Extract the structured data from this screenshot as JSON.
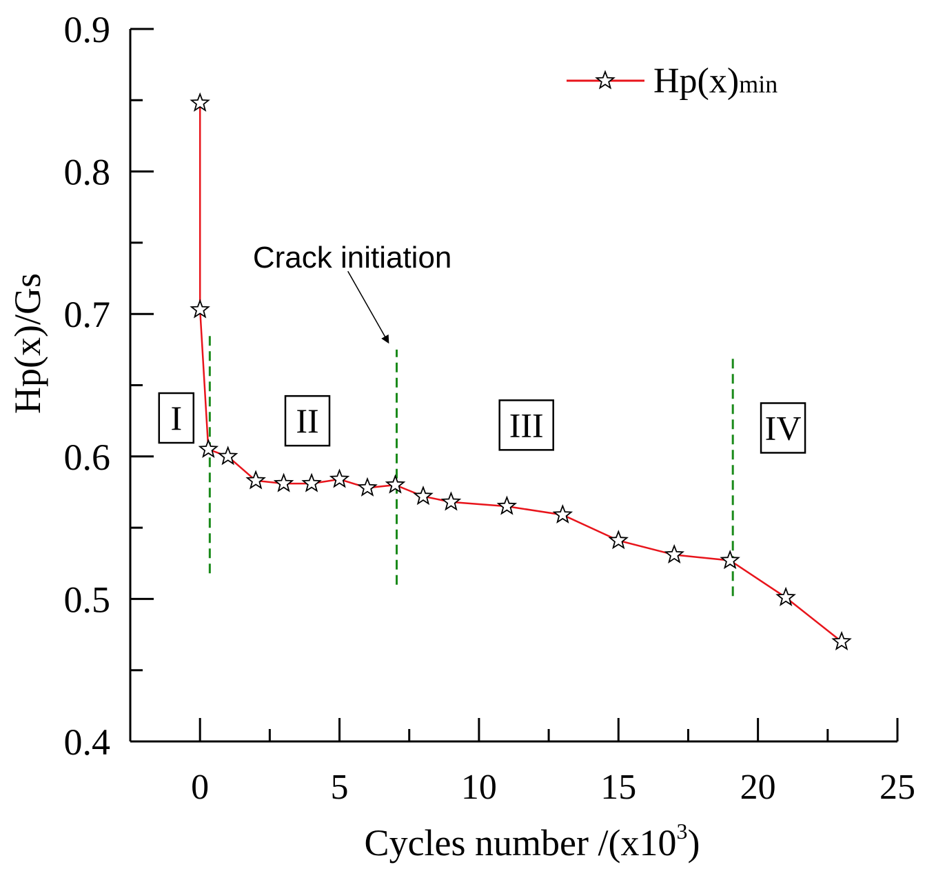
{
  "chart_data": {
    "type": "line",
    "title": "",
    "xlabel": "Cycles number /(x10",
    "xlabel_sup": "3",
    "xlabel_close": ")",
    "ylabel": "Hp(x)/Gs",
    "xlim": [
      -2.5,
      25
    ],
    "ylim": [
      0.4,
      0.9
    ],
    "x_ticks": [
      0,
      5,
      10,
      15,
      20,
      25
    ],
    "y_ticks": [
      0.4,
      0.5,
      0.6,
      0.7,
      0.8,
      0.9
    ],
    "x_tick_labels": [
      "0",
      "5",
      "10",
      "15",
      "20",
      "25"
    ],
    "y_tick_labels": [
      "0.4",
      "0.5",
      "0.6",
      "0.7",
      "0.8",
      "0.9"
    ],
    "grid": false,
    "legend_position": "top-right",
    "series": [
      {
        "name": "Hp(x)",
        "name_sub": "min",
        "color": "#e8141b",
        "marker": "star",
        "x": [
          0,
          0,
          0.3,
          1,
          2,
          3,
          4,
          5,
          6,
          7,
          8,
          9,
          11,
          13,
          15,
          17,
          19,
          21,
          23
        ],
        "y": [
          0.848,
          0.703,
          0.605,
          0.6,
          0.583,
          0.581,
          0.581,
          0.584,
          0.578,
          0.58,
          0.572,
          0.568,
          0.565,
          0.559,
          0.541,
          0.531,
          0.527,
          0.501,
          0.47
        ]
      }
    ],
    "stage_dividers": {
      "color": "#1a8a1a",
      "lines": [
        {
          "x": 0.35,
          "y_from": 0.518,
          "y_to": 0.685
        },
        {
          "x": 7.05,
          "y_from": 0.51,
          "y_to": 0.675
        },
        {
          "x": 19.1,
          "y_from": 0.502,
          "y_to": 0.67
        }
      ]
    },
    "stage_labels": [
      {
        "text": "I",
        "x": -0.85,
        "y": 0.627
      },
      {
        "text": "II",
        "x": 3.85,
        "y": 0.625
      },
      {
        "text": "III",
        "x": 11.7,
        "y": 0.622
      },
      {
        "text": "IV",
        "x": 20.9,
        "y": 0.62
      }
    ],
    "annotation": {
      "text": "Crack initiation",
      "text_x": 5.6,
      "text_y": 0.745,
      "arrow_from": [
        5.3,
        0.73
      ],
      "arrow_to": [
        6.75,
        0.68
      ]
    }
  }
}
